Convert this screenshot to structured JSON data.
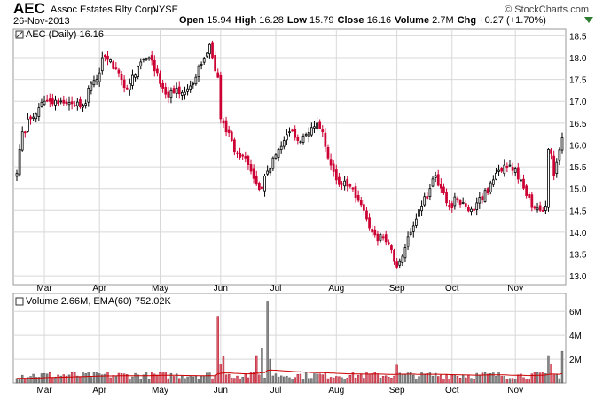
{
  "header": {
    "symbol": "AEC",
    "company": "Assoc Estates Rlty Corp.",
    "exchange": "NYSE",
    "date": "26-Nov-2013",
    "brand": "© StockCharts.com",
    "open_label": "Open",
    "open": "15.94",
    "high_label": "High",
    "high": "16.28",
    "low_label": "Low",
    "low": "15.79",
    "close_label": "Close",
    "close": "16.16",
    "volume_label": "Volume",
    "volume": "2.7M",
    "chg_label": "Chg",
    "chg": "+0.27 (+1.70%)",
    "chg_arrow": "up-arrow-icon"
  },
  "colors": {
    "up": "#000000",
    "down": "#cc0033",
    "ema": "#cc0000",
    "grid": "#d8d8d8",
    "vol_up": "#888888",
    "vol_down": "#e05a6a"
  },
  "chart_data": [
    {
      "type": "candlestick",
      "legend": "AEC (Daily) 16.16",
      "ylim": [
        12.8,
        18.65
      ],
      "yticks": [
        "13.0",
        "13.5",
        "14.0",
        "14.5",
        "15.0",
        "15.5",
        "16.0",
        "16.5",
        "17.0",
        "17.5",
        "18.0",
        "18.5"
      ],
      "xticks": [
        "Mar",
        "Apr",
        "May",
        "Jun",
        "Jul",
        "Aug",
        "Sep",
        "Oct",
        "Nov"
      ],
      "close_anchors": [
        [
          "2013-02-14",
          15.35
        ],
        [
          "2013-02-15",
          15.9
        ],
        [
          "2013-02-19",
          16.3
        ],
        [
          "2013-02-22",
          16.6
        ],
        [
          "2013-02-27",
          16.85
        ],
        [
          "2013-03-01",
          17.0
        ],
        [
          "2013-03-05",
          17.0
        ],
        [
          "2013-03-08",
          16.95
        ],
        [
          "2013-03-13",
          16.95
        ],
        [
          "2013-03-18",
          16.9
        ],
        [
          "2013-03-22",
          16.95
        ],
        [
          "2013-03-25",
          17.3
        ],
        [
          "2013-03-28",
          17.5
        ],
        [
          "2013-04-02",
          18.0
        ],
        [
          "2013-04-05",
          17.95
        ],
        [
          "2013-04-08",
          17.75
        ],
        [
          "2013-04-11",
          17.5
        ],
        [
          "2013-04-15",
          17.3
        ],
        [
          "2013-04-18",
          17.6
        ],
        [
          "2013-04-22",
          17.9
        ],
        [
          "2013-04-25",
          18.0
        ],
        [
          "2013-04-29",
          17.7
        ],
        [
          "2013-05-02",
          17.3
        ],
        [
          "2013-05-06",
          17.1
        ],
        [
          "2013-05-09",
          17.3
        ],
        [
          "2013-05-13",
          17.2
        ],
        [
          "2013-05-16",
          17.35
        ],
        [
          "2013-05-20",
          17.55
        ],
        [
          "2013-05-22",
          17.85
        ],
        [
          "2013-05-24",
          18.1
        ],
        [
          "2013-05-28",
          18.3
        ],
        [
          "2013-05-29",
          18.0
        ],
        [
          "2013-05-30",
          17.7
        ],
        [
          "2013-05-31",
          17.55
        ],
        [
          "2013-06-03",
          16.6
        ],
        [
          "2013-06-05",
          16.3
        ],
        [
          "2013-06-07",
          16.1
        ],
        [
          "2013-06-11",
          15.8
        ],
        [
          "2013-06-14",
          15.7
        ],
        [
          "2013-06-18",
          15.4
        ],
        [
          "2013-06-20",
          15.1
        ],
        [
          "2013-06-24",
          15.0
        ],
        [
          "2013-06-26",
          15.4
        ],
        [
          "2013-06-28",
          15.7
        ],
        [
          "2013-07-02",
          15.9
        ],
        [
          "2013-07-05",
          16.1
        ],
        [
          "2013-07-09",
          16.3
        ],
        [
          "2013-07-12",
          16.1
        ],
        [
          "2013-07-16",
          16.2
        ],
        [
          "2013-07-19",
          16.4
        ],
        [
          "2013-07-23",
          16.5
        ],
        [
          "2013-07-25",
          16.3
        ],
        [
          "2013-07-29",
          15.7
        ],
        [
          "2013-08-01",
          15.2
        ],
        [
          "2013-08-05",
          15.1
        ],
        [
          "2013-08-08",
          15.05
        ],
        [
          "2013-08-12",
          14.8
        ],
        [
          "2013-08-15",
          14.5
        ],
        [
          "2013-08-19",
          14.1
        ],
        [
          "2013-08-22",
          13.8
        ],
        [
          "2013-08-26",
          13.9
        ],
        [
          "2013-08-29",
          13.6
        ],
        [
          "2013-09-03",
          13.2
        ],
        [
          "2013-09-05",
          13.45
        ],
        [
          "2013-09-09",
          13.9
        ],
        [
          "2013-09-12",
          14.3
        ],
        [
          "2013-09-16",
          14.6
        ],
        [
          "2013-09-19",
          15.0
        ],
        [
          "2013-09-23",
          15.3
        ],
        [
          "2013-09-26",
          14.9
        ],
        [
          "2013-09-30",
          14.6
        ],
        [
          "2013-10-03",
          14.75
        ],
        [
          "2013-10-08",
          14.6
        ],
        [
          "2013-10-11",
          14.5
        ],
        [
          "2013-10-15",
          14.8
        ],
        [
          "2013-10-18",
          14.9
        ],
        [
          "2013-10-22",
          15.2
        ],
        [
          "2013-10-25",
          15.4
        ],
        [
          "2013-10-29",
          15.5
        ],
        [
          "2013-11-01",
          15.45
        ],
        [
          "2013-11-05",
          15.2
        ],
        [
          "2013-11-08",
          14.8
        ],
        [
          "2013-11-12",
          14.55
        ],
        [
          "2013-11-14",
          14.5
        ],
        [
          "2013-11-18",
          14.6
        ],
        [
          "2013-11-19",
          15.9
        ],
        [
          "2013-11-20",
          15.8
        ],
        [
          "2013-11-21",
          15.3
        ],
        [
          "2013-11-22",
          15.6
        ],
        [
          "2013-11-25",
          15.89
        ],
        [
          "2013-11-26",
          16.16
        ]
      ]
    },
    {
      "type": "bar",
      "legend": "Volume 2.66M, EMA(60) 752.02K",
      "ylim": [
        0,
        7500000
      ],
      "yticks": [
        "2M",
        "4M",
        "6M"
      ],
      "baseline_volume": 600000,
      "spikes": [
        [
          "2013-05-31",
          5600000
        ],
        [
          "2013-06-03",
          1600000
        ],
        [
          "2013-06-04",
          2200000
        ],
        [
          "2013-06-20",
          2300000
        ],
        [
          "2013-06-24",
          2900000
        ],
        [
          "2013-06-26",
          6800000
        ],
        [
          "2013-06-27",
          2000000
        ],
        [
          "2013-09-03",
          1500000
        ],
        [
          "2013-11-19",
          2300000
        ],
        [
          "2013-11-20",
          1600000
        ],
        [
          "2013-11-26",
          2660000
        ]
      ],
      "ema_value": 752020
    }
  ]
}
